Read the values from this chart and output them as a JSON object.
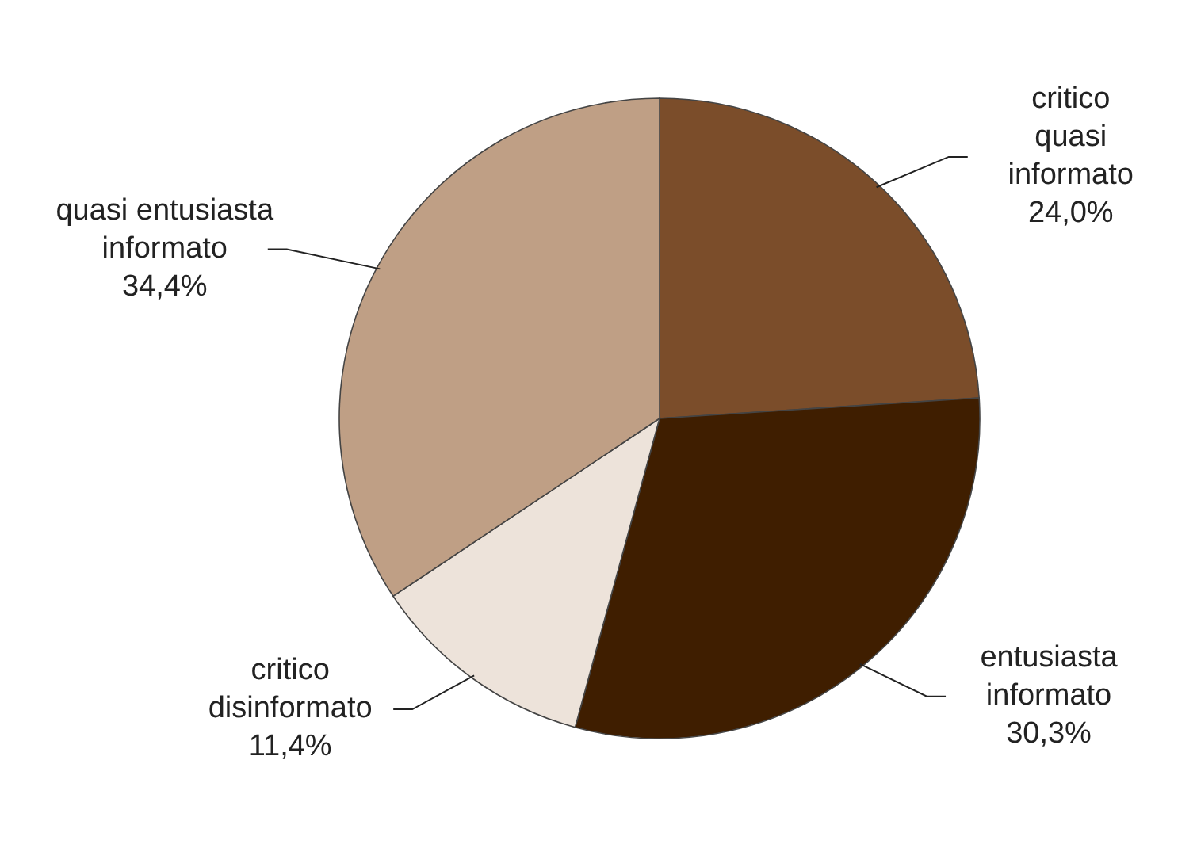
{
  "chart_data": {
    "type": "pie",
    "categories": [
      "critico\nquasi\ninformato",
      "entusiasta\ninformato",
      "critico\ndisinformato",
      "quasi entusiasta\ninformato"
    ],
    "values": [
      24.0,
      30.3,
      11.4,
      34.4
    ],
    "value_labels": [
      "24,0%",
      "30,3%",
      "11,4%",
      "34,4%"
    ],
    "colors": [
      "#7b4d2a",
      "#3f1e00",
      "#ede3da",
      "#bf9f85"
    ]
  }
}
